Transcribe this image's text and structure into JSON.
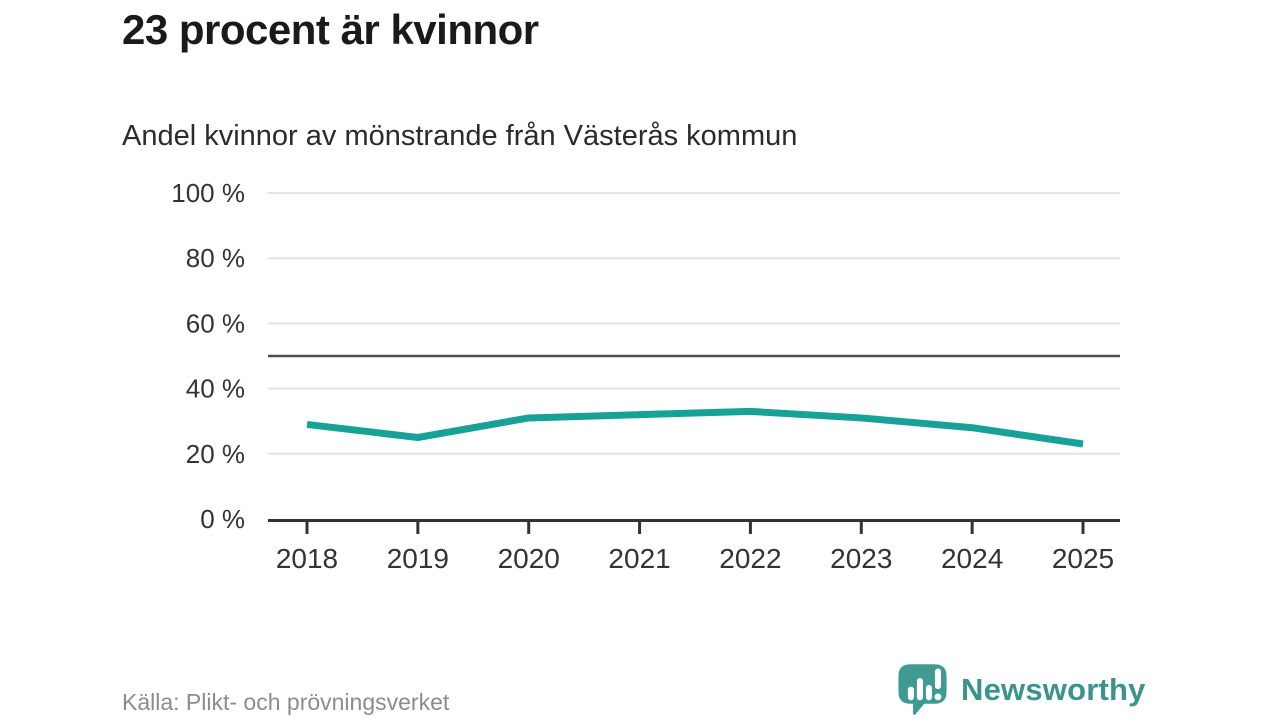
{
  "header": {
    "title": "23 procent är kvinnor",
    "subtitle": "Andel kvinnor av mönstrande från Västerås kommun"
  },
  "chart_data": {
    "type": "line",
    "title": "23 procent är kvinnor",
    "subtitle": "Andel kvinnor av mönstrande från Västerås kommun",
    "x": [
      2018,
      2019,
      2020,
      2021,
      2022,
      2023,
      2024,
      2025
    ],
    "series": [
      {
        "name": "Andel kvinnor av mönstrande",
        "values": [
          29,
          25,
          31,
          32,
          33,
          31,
          28,
          23
        ]
      }
    ],
    "unit": "%",
    "ylim": [
      0,
      100
    ],
    "yticks": [
      0,
      20,
      40,
      60,
      80,
      100
    ],
    "ytick_suffix": " %",
    "reference_line": {
      "value": 50,
      "color": "#4d4d4d"
    },
    "grid": true,
    "legend_position": "none",
    "colors": {
      "line": "#16a296",
      "grid": "#e3e3e3",
      "axis": "#333333",
      "tick_label": "#333333"
    }
  },
  "footer": {
    "source": "Källa: Plikt- och prövningsverket",
    "brand_name": "Newsworthy",
    "brand_color": "#3a948c"
  }
}
